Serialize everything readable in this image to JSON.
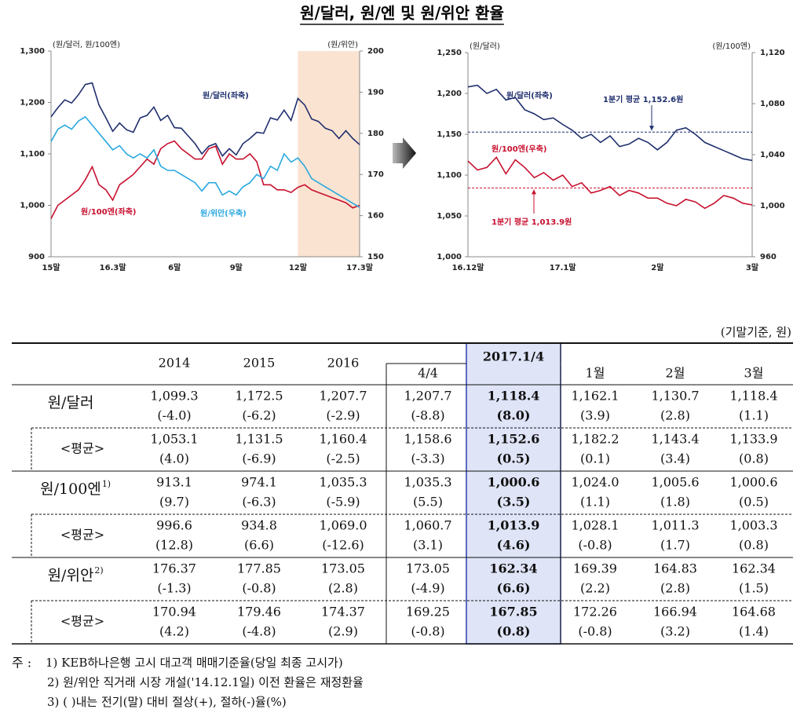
{
  "title": "원/달러, 원/엔 및 원/위안 환율",
  "chart_data": [
    {
      "type": "line",
      "ylabel": "(원/달러, 원/100엔)",
      "y2label": "(원/위안)",
      "categories": [
        "15말",
        null,
        null,
        null,
        null,
        null,
        null,
        null,
        null,
        "16.3말",
        null,
        null,
        null,
        null,
        null,
        null,
        null,
        null,
        "6말",
        null,
        null,
        null,
        null,
        null,
        null,
        null,
        null,
        "9말",
        null,
        null,
        null,
        null,
        null,
        null,
        null,
        null,
        "12말",
        null,
        null,
        null,
        null,
        null,
        null,
        null,
        null,
        "17.3말"
      ],
      "ylim": [
        900,
        1300
      ],
      "yticks": [
        900,
        {
          "value": 1000,
          "label": "1,000"
        },
        {
          "value": 1100,
          "label": "1,100"
        },
        {
          "value": 1200,
          "label": "1,200"
        },
        {
          "value": 1300,
          "label": "1,300"
        }
      ],
      "y2lim": [
        150,
        200
      ],
      "y2ticks": [
        150,
        160,
        170,
        180,
        190,
        200
      ],
      "series": [
        {
          "name": "원/달러(좌축)",
          "color": "#1f2f6e",
          "axis": "y",
          "values": [
            1172,
            1190,
            1205,
            1199,
            1215,
            1235,
            1238,
            1195,
            1170,
            1144,
            1160,
            1147,
            1142,
            1170,
            1175,
            1191,
            1165,
            1175,
            1151,
            1150,
            1135,
            1120,
            1100,
            1115,
            1120,
            1096,
            1110,
            1098,
            1120,
            1130,
            1142,
            1140,
            1170,
            1166,
            1185,
            1165,
            1208,
            1195,
            1168,
            1163,
            1150,
            1145,
            1130,
            1145,
            1130,
            1118
          ]
        },
        {
          "name": "원/100엔(좌축)",
          "color": "#c8102e",
          "axis": "y",
          "values": [
            974,
            1000,
            1010,
            1020,
            1030,
            1050,
            1075,
            1040,
            1030,
            1010,
            1040,
            1050,
            1060,
            1075,
            1090,
            1080,
            1110,
            1120,
            1125,
            1110,
            1100,
            1090,
            1090,
            1110,
            1115,
            1080,
            1100,
            1090,
            1090,
            1100,
            1085,
            1040,
            1040,
            1030,
            1030,
            1025,
            1035,
            1040,
            1030,
            1025,
            1020,
            1015,
            1010,
            1005,
            995,
            1000
          ]
        },
        {
          "name": "원/위안(우축)",
          "color": "#29a8e0",
          "axis": "y2",
          "values": [
            178,
            181,
            182,
            181,
            183,
            184,
            182,
            180,
            178,
            176,
            177,
            175,
            174,
            175,
            174,
            176,
            172,
            171,
            171,
            170,
            169,
            168,
            166,
            168,
            168,
            165,
            166,
            165,
            167,
            168,
            170,
            169,
            172,
            171,
            175,
            173,
            174,
            172,
            169,
            168,
            167,
            166,
            165,
            164,
            163,
            162
          ]
        }
      ]
    },
    {
      "type": "line",
      "ylabel": "(원/달러)",
      "y2label": "(원/100엔)",
      "categories": [
        "16.12말",
        null,
        null,
        null,
        null,
        null,
        null,
        null,
        null,
        null,
        "17.1말",
        null,
        null,
        null,
        null,
        null,
        null,
        null,
        null,
        null,
        "2말",
        null,
        null,
        null,
        null,
        null,
        null,
        null,
        null,
        null,
        "3말"
      ],
      "ylim": [
        1000,
        1250
      ],
      "yticks": [
        {
          "value": 1000,
          "label": "1,000"
        },
        {
          "value": 1050,
          "label": "1,050"
        },
        {
          "value": 1100,
          "label": "1,100"
        },
        {
          "value": 1150,
          "label": "1,150"
        },
        {
          "value": 1200,
          "label": "1,200"
        },
        {
          "value": 1250,
          "label": "1,250"
        }
      ],
      "y2lim": [
        960,
        1120
      ],
      "y2ticks": [
        960,
        {
          "value": 1000,
          "label": "1,000"
        },
        {
          "value": 1040,
          "label": "1,040"
        },
        {
          "value": 1080,
          "label": "1,080"
        },
        {
          "value": 1120,
          "label": "1,120"
        }
      ],
      "series": [
        {
          "name": "원/달러(좌축)",
          "color": "#1f2f6e",
          "axis": "y",
          "values": [
            1208,
            1210,
            1200,
            1205,
            1192,
            1195,
            1180,
            1175,
            1168,
            1170,
            1162,
            1155,
            1145,
            1150,
            1140,
            1148,
            1135,
            1138,
            1145,
            1140,
            1131,
            1140,
            1155,
            1158,
            1150,
            1140,
            1135,
            1130,
            1125,
            1120,
            1118
          ]
        },
        {
          "name": "원/100엔(우축)",
          "color": "#c8102e",
          "axis": "y2",
          "values": [
            1035,
            1028,
            1030,
            1038,
            1025,
            1036,
            1030,
            1022,
            1026,
            1020,
            1024,
            1015,
            1018,
            1010,
            1012,
            1015,
            1008,
            1012,
            1010,
            1006,
            1006,
            1002,
            1000,
            1005,
            1003,
            998,
            1002,
            1008,
            1006,
            1002,
            1000.6
          ]
        }
      ],
      "reference_lines": [
        {
          "value": 1152.6,
          "axis": "y",
          "color": "#1f2f6e",
          "label": "1분기 평균 1,152.6원"
        },
        {
          "value": 1013.9,
          "axis": "y2",
          "color": "#c8102e",
          "label": "1분기 평균 1,013.9원"
        }
      ]
    }
  ],
  "table": {
    "unit": "(기말기준, 원)",
    "columns": [
      "2014",
      "2015",
      "2016",
      "4/4",
      "2017.1/4",
      "1월",
      "2월",
      "3월"
    ],
    "rows": [
      {
        "label": "원/달러",
        "cells": [
          [
            "1,099.3",
            "(-4.0)"
          ],
          [
            "1,172.5",
            "(-6.2)"
          ],
          [
            "1,207.7",
            "(-2.9)"
          ],
          [
            "1,207.7",
            "(-8.8)"
          ],
          [
            "1,118.4",
            "(8.0)"
          ],
          [
            "1,162.1",
            "(3.9)"
          ],
          [
            "1,130.7",
            "(2.8)"
          ],
          [
            "1,118.4",
            "(1.1)"
          ]
        ]
      },
      {
        "label": "<평균>",
        "cells": [
          [
            "1,053.1",
            "(4.0)"
          ],
          [
            "1,131.5",
            "(-6.9)"
          ],
          [
            "1,160.4",
            "(-2.5)"
          ],
          [
            "1,158.6",
            "(-3.3)"
          ],
          [
            "1,152.6",
            "(0.5)"
          ],
          [
            "1,182.2",
            "(0.1)"
          ],
          [
            "1,143.4",
            "(3.4)"
          ],
          [
            "1,133.9",
            "(0.8)"
          ]
        ]
      },
      {
        "label": "원/100엔",
        "note": "1)",
        "cells": [
          [
            "913.1",
            "(9.7)"
          ],
          [
            "974.1",
            "(-6.3)"
          ],
          [
            "1,035.3",
            "(-5.9)"
          ],
          [
            "1,035.3",
            "(5.5)"
          ],
          [
            "1,000.6",
            "(3.5)"
          ],
          [
            "1,024.0",
            "(1.1)"
          ],
          [
            "1,005.6",
            "(1.8)"
          ],
          [
            "1,000.6",
            "(0.5)"
          ]
        ]
      },
      {
        "label": "<평균>",
        "cells": [
          [
            "996.6",
            "(12.8)"
          ],
          [
            "934.8",
            "(6.6)"
          ],
          [
            "1,069.0",
            "(-12.6)"
          ],
          [
            "1,060.7",
            "(3.1)"
          ],
          [
            "1,013.9",
            "(4.6)"
          ],
          [
            "1,028.1",
            "(-0.8)"
          ],
          [
            "1,011.3",
            "(1.7)"
          ],
          [
            "1,003.3",
            "(0.8)"
          ]
        ]
      },
      {
        "label": "원/위안",
        "note": "2)",
        "cells": [
          [
            "176.37",
            "(-1.3)"
          ],
          [
            "177.85",
            "(-0.8)"
          ],
          [
            "173.05",
            "(2.8)"
          ],
          [
            "173.05",
            "(-4.9)"
          ],
          [
            "162.34",
            "(6.6)"
          ],
          [
            "169.39",
            "(2.2)"
          ],
          [
            "164.83",
            "(2.8)"
          ],
          [
            "162.34",
            "(1.5)"
          ]
        ]
      },
      {
        "label": "<평균>",
        "cells": [
          [
            "170.94",
            "(4.2)"
          ],
          [
            "179.46",
            "(-4.8)"
          ],
          [
            "174.37",
            "(2.9)"
          ],
          [
            "169.25",
            "(-0.8)"
          ],
          [
            "167.85",
            "(0.8)"
          ],
          [
            "172.26",
            "(-0.8)"
          ],
          [
            "166.94",
            "(3.2)"
          ],
          [
            "164.68",
            "(1.4)"
          ]
        ]
      }
    ]
  },
  "notes": {
    "prefix": "주 :",
    "items": [
      "1) KEB하나은행 고시 대고객 매매기준율(당일 최종 고시가)",
      "2) 원/위안 직거래 시장 개설('14.12.1일) 이전 환율은 재정환율",
      "3) (   )내는 전기(말) 대비 절상(+), 절하(-)율(%)"
    ]
  }
}
